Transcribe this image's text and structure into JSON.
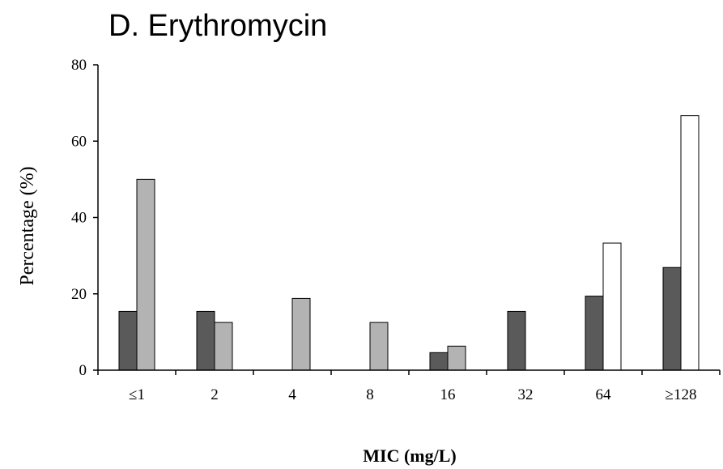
{
  "chart_data": {
    "type": "bar",
    "title": "D. Erythromycin",
    "xlabel": "MIC (mg/L)",
    "ylabel": "Percentage (%)",
    "categories": [
      "≤1",
      "2",
      "4",
      "8",
      "16",
      "32",
      "64",
      "≥128"
    ],
    "ylim": [
      0,
      80
    ],
    "yticks": [
      0,
      20,
      40,
      60,
      80
    ],
    "grid": false,
    "legend": "none",
    "series": [
      {
        "color": "#5a5a5a",
        "values": [
          15.4,
          15.4,
          0,
          0,
          4.6,
          15.4,
          19.4,
          26.9
        ]
      },
      {
        "color": "#b3b3b3",
        "values": [
          50,
          12.5,
          18.8,
          12.5,
          6.3,
          0,
          0,
          0
        ]
      },
      {
        "color": "#ffffff",
        "values": [
          0,
          0,
          0,
          0,
          0,
          0,
          33.3,
          66.7
        ]
      }
    ]
  }
}
